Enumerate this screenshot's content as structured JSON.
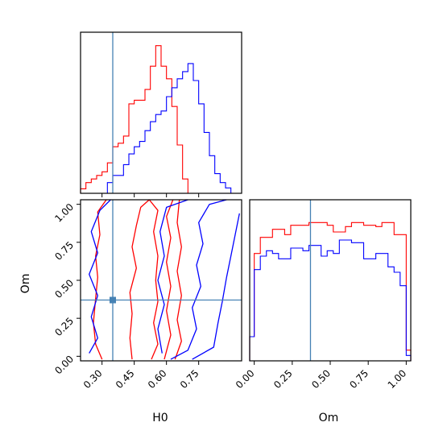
{
  "chart_data": {
    "type": "corner",
    "parameters": [
      "H0",
      "Om"
    ],
    "truth": {
      "H0": 0.35,
      "Om": 0.37
    },
    "truth_color": "#4682b4",
    "series_colors": [
      "#ff0000",
      "#0000ff"
    ],
    "panels": [
      {
        "id": "hist_H0",
        "type": "histogram",
        "parameter": "H0",
        "xlim": [
          0.2,
          0.95
        ],
        "ylim": [
          0,
          180
        ],
        "bins": [
          0.2,
          0.225,
          0.25,
          0.275,
          0.3,
          0.325,
          0.35,
          0.375,
          0.4,
          0.425,
          0.45,
          0.475,
          0.5,
          0.525,
          0.55,
          0.575,
          0.6,
          0.625,
          0.65,
          0.675,
          0.7,
          0.725,
          0.75,
          0.775,
          0.8,
          0.825,
          0.85,
          0.875,
          0.9
        ],
        "series": [
          {
            "color": "#ff0000",
            "counts": [
              5,
              12,
              16,
              20,
              24,
              34,
              52,
              56,
              64,
              100,
              104,
              104,
              116,
              142,
              165,
              142,
              128,
              97,
              54,
              16,
              0,
              0,
              0,
              0,
              0,
              0,
              0,
              0
            ]
          },
          {
            "color": "#0000ff",
            "counts": [
              0,
              0,
              0,
              0,
              0,
              12,
              20,
              20,
              32,
              44,
              52,
              58,
              70,
              80,
              88,
              92,
              108,
              118,
              128,
              136,
              145,
              126,
              100,
              68,
              42,
              22,
              12,
              6
            ]
          }
        ]
      },
      {
        "id": "hist_Om",
        "type": "histogram",
        "parameter": "Om",
        "xlim": [
          -0.03,
          1.03
        ],
        "ylim": [
          0,
          1.2
        ],
        "bins": [
          -0.03,
          0.0,
          0.04,
          0.08,
          0.12,
          0.16,
          0.2,
          0.24,
          0.28,
          0.32,
          0.36,
          0.4,
          0.44,
          0.48,
          0.52,
          0.56,
          0.6,
          0.64,
          0.68,
          0.72,
          0.76,
          0.8,
          0.84,
          0.88,
          0.92,
          0.96,
          1.0,
          1.03
        ],
        "series": [
          {
            "color": "#ff0000",
            "counts": [
              0.18,
              0.8,
              0.92,
              0.92,
              0.98,
              0.98,
              0.94,
              1.01,
              1.01,
              1.01,
              1.03,
              1.03,
              1.03,
              1.01,
              0.96,
              0.96,
              1.0,
              1.03,
              1.03,
              1.01,
              1.01,
              1.0,
              1.03,
              1.03,
              0.94,
              0.94,
              0.08
            ]
          },
          {
            "color": "#0000ff",
            "counts": [
              0.18,
              0.68,
              0.78,
              0.82,
              0.8,
              0.76,
              0.76,
              0.84,
              0.84,
              0.82,
              0.86,
              0.86,
              0.78,
              0.82,
              0.8,
              0.9,
              0.9,
              0.88,
              0.88,
              0.76,
              0.76,
              0.8,
              0.8,
              0.7,
              0.66,
              0.56,
              0.04
            ]
          }
        ]
      },
      {
        "id": "scatter_H0_Om",
        "type": "contour",
        "x_parameter": "H0",
        "y_parameter": "Om",
        "xlim": [
          0.2,
          0.95
        ],
        "ylim": [
          -0.03,
          1.03
        ],
        "series": [
          {
            "color": "#ff0000",
            "contours": [
              [
                [
                  0.3,
                  -0.02
                ],
                [
                  0.27,
                  0.08
                ],
                [
                  0.26,
                  0.22
                ],
                [
                  0.27,
                  0.38
                ],
                [
                  0.28,
                  0.52
                ],
                [
                  0.27,
                  0.66
                ],
                [
                  0.29,
                  0.8
                ],
                [
                  0.28,
                  0.95
                ],
                [
                  0.32,
                  1.03
                ]
              ],
              [
                [
                  0.44,
                  -0.02
                ],
                [
                  0.43,
                  0.12
                ],
                [
                  0.44,
                  0.28
                ],
                [
                  0.43,
                  0.42
                ],
                [
                  0.46,
                  0.58
                ],
                [
                  0.44,
                  0.72
                ],
                [
                  0.46,
                  0.86
                ],
                [
                  0.48,
                  0.98
                ],
                [
                  0.52,
                  1.03
                ],
                [
                  0.56,
                  0.96
                ],
                [
                  0.54,
                  0.82
                ],
                [
                  0.56,
                  0.66
                ],
                [
                  0.55,
                  0.5
                ],
                [
                  0.56,
                  0.36
                ],
                [
                  0.54,
                  0.22
                ],
                [
                  0.56,
                  0.08
                ],
                [
                  0.53,
                  -0.02
                ]
              ],
              [
                [
                  0.59,
                  -0.02
                ],
                [
                  0.62,
                  0.14
                ],
                [
                  0.6,
                  0.3
                ],
                [
                  0.62,
                  0.46
                ],
                [
                  0.6,
                  0.62
                ],
                [
                  0.62,
                  0.78
                ],
                [
                  0.6,
                  0.92
                ],
                [
                  0.63,
                  1.03
                ]
              ],
              [
                [
                  0.64,
                  -0.02
                ],
                [
                  0.67,
                  0.1
                ],
                [
                  0.65,
                  0.24
                ],
                [
                  0.67,
                  0.4
                ],
                [
                  0.65,
                  0.56
                ],
                [
                  0.67,
                  0.72
                ],
                [
                  0.65,
                  0.88
                ],
                [
                  0.66,
                  1.03
                ]
              ]
            ]
          },
          {
            "color": "#0000ff",
            "contours": [
              [
                [
                  0.24,
                  0.02
                ],
                [
                  0.28,
                  0.12
                ],
                [
                  0.25,
                  0.26
                ],
                [
                  0.28,
                  0.4
                ],
                [
                  0.24,
                  0.54
                ],
                [
                  0.28,
                  0.68
                ],
                [
                  0.25,
                  0.82
                ],
                [
                  0.29,
                  0.96
                ],
                [
                  0.34,
                  1.03
                ]
              ],
              [
                [
                  0.62,
                  -0.02
                ],
                [
                  0.7,
                  0.04
                ],
                [
                  0.74,
                  0.18
                ],
                [
                  0.72,
                  0.32
                ],
                [
                  0.76,
                  0.46
                ],
                [
                  0.74,
                  0.6
                ],
                [
                  0.77,
                  0.74
                ],
                [
                  0.75,
                  0.88
                ],
                [
                  0.8,
                  1.0
                ],
                [
                  0.88,
                  1.03
                ]
              ],
              [
                [
                  0.72,
                  -0.02
                ],
                [
                  0.82,
                  0.06
                ],
                [
                  0.84,
                  0.22
                ],
                [
                  0.86,
                  0.36
                ],
                [
                  0.88,
                  0.52
                ],
                [
                  0.9,
                  0.66
                ],
                [
                  0.92,
                  0.8
                ],
                [
                  0.94,
                  0.94
                ]
              ],
              [
                [
                  0.58,
                  0.02
                ],
                [
                  0.56,
                  0.18
                ],
                [
                  0.59,
                  0.34
                ],
                [
                  0.56,
                  0.5
                ],
                [
                  0.59,
                  0.66
                ],
                [
                  0.57,
                  0.82
                ],
                [
                  0.6,
                  0.98
                ],
                [
                  0.7,
                  1.03
                ]
              ]
            ]
          }
        ]
      }
    ],
    "axes": {
      "H0": {
        "ticks": [
          0.3,
          0.45,
          0.6,
          0.75
        ],
        "tick_labels": [
          "0.30",
          "0.45",
          "0.60",
          "0.75"
        ],
        "label": "H0"
      },
      "Om": {
        "ticks": [
          0.0,
          0.25,
          0.5,
          0.75,
          1.0
        ],
        "tick_labels": [
          "0.00",
          "0.25",
          "0.50",
          "0.75",
          "1.00"
        ],
        "label": "Om"
      }
    }
  }
}
